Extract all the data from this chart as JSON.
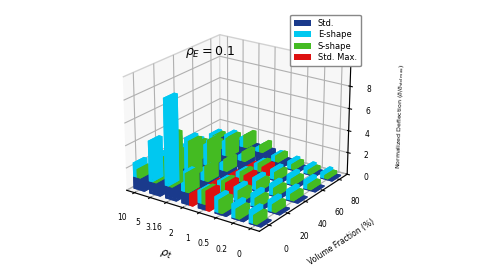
{
  "rho_t_labels": [
    "10",
    "5",
    "3.16",
    "2",
    "1",
    "0.5",
    "0.2",
    "0"
  ],
  "vf_labels": [
    "0",
    "20",
    "40",
    "60",
    "80"
  ],
  "colors": {
    "std": "#1a3a8c",
    "eshape": "#00c8f0",
    "sshape": "#44bb22",
    "stdmax": "#dd1111"
  },
  "legend_labels": [
    "Std.",
    "E-shape",
    "S-shape",
    "Std. Max."
  ],
  "annotation": "ρ_E=0.1",
  "xlabel": "ρ_t",
  "ylabel": "Volume Fraction (%)",
  "zlabel": "Normalized Deflection (δ/δ_std max)",
  "std_base": [
    [
      1.1,
      1.1,
      1.05,
      1.0,
      0.9
    ],
    [
      1.1,
      1.1,
      1.05,
      1.0,
      0.9
    ],
    [
      1.15,
      1.15,
      1.1,
      1.05,
      0.95
    ],
    [
      1.1,
      1.1,
      1.05,
      1.0,
      0.9
    ],
    [
      0.5,
      0.5,
      0.48,
      0.45,
      0.4
    ],
    [
      0.15,
      0.15,
      0.14,
      0.13,
      0.12
    ],
    [
      0.12,
      0.12,
      0.11,
      0.1,
      0.1
    ],
    [
      0.12,
      0.12,
      0.11,
      0.1,
      0.1
    ]
  ],
  "eshape_add": [
    [
      1.25,
      0.95,
      0.7,
      0.55,
      0.45
    ],
    [
      3.6,
      2.75,
      1.75,
      1.05,
      0.75
    ],
    [
      7.65,
      3.3,
      1.85,
      1.3,
      0.85
    ],
    [
      1.65,
      1.05,
      0.65,
      0.45,
      0.35
    ],
    [
      1.1,
      0.95,
      0.8,
      0.65,
      0.5
    ],
    [
      1.35,
      1.2,
      1.05,
      0.85,
      0.65
    ],
    [
      1.2,
      1.1,
      0.95,
      0.8,
      0.55
    ],
    [
      1.1,
      0.95,
      0.85,
      0.75,
      0.5
    ]
  ],
  "sshape_add": [
    [
      0.75,
      0.65,
      0.55,
      0.45,
      0.35
    ],
    [
      1.75,
      1.45,
      1.15,
      0.85,
      0.65
    ],
    [
      4.55,
      3.1,
      2.35,
      1.65,
      1.15
    ],
    [
      1.65,
      1.35,
      1.05,
      0.85,
      0.65
    ],
    [
      1.25,
      1.05,
      0.9,
      0.75,
      0.55
    ],
    [
      1.15,
      0.95,
      0.8,
      0.65,
      0.45
    ],
    [
      0.85,
      0.75,
      0.65,
      0.5,
      0.35
    ],
    [
      0.75,
      0.65,
      0.55,
      0.45,
      0.3
    ]
  ],
  "stdmax_val": [
    [
      0.0,
      0.0,
      0.0,
      0.0,
      0.0
    ],
    [
      0.0,
      0.0,
      0.0,
      0.0,
      0.0
    ],
    [
      0.0,
      0.0,
      0.0,
      0.0,
      0.0
    ],
    [
      1.05,
      0.95,
      0.75,
      0.6,
      0.0
    ],
    [
      1.75,
      1.45,
      1.15,
      0.95,
      0.0
    ],
    [
      0.0,
      0.0,
      0.0,
      0.0,
      0.0
    ],
    [
      0.0,
      0.0,
      0.0,
      0.0,
      0.0
    ],
    [
      0.0,
      0.0,
      0.0,
      0.0,
      0.0
    ]
  ]
}
